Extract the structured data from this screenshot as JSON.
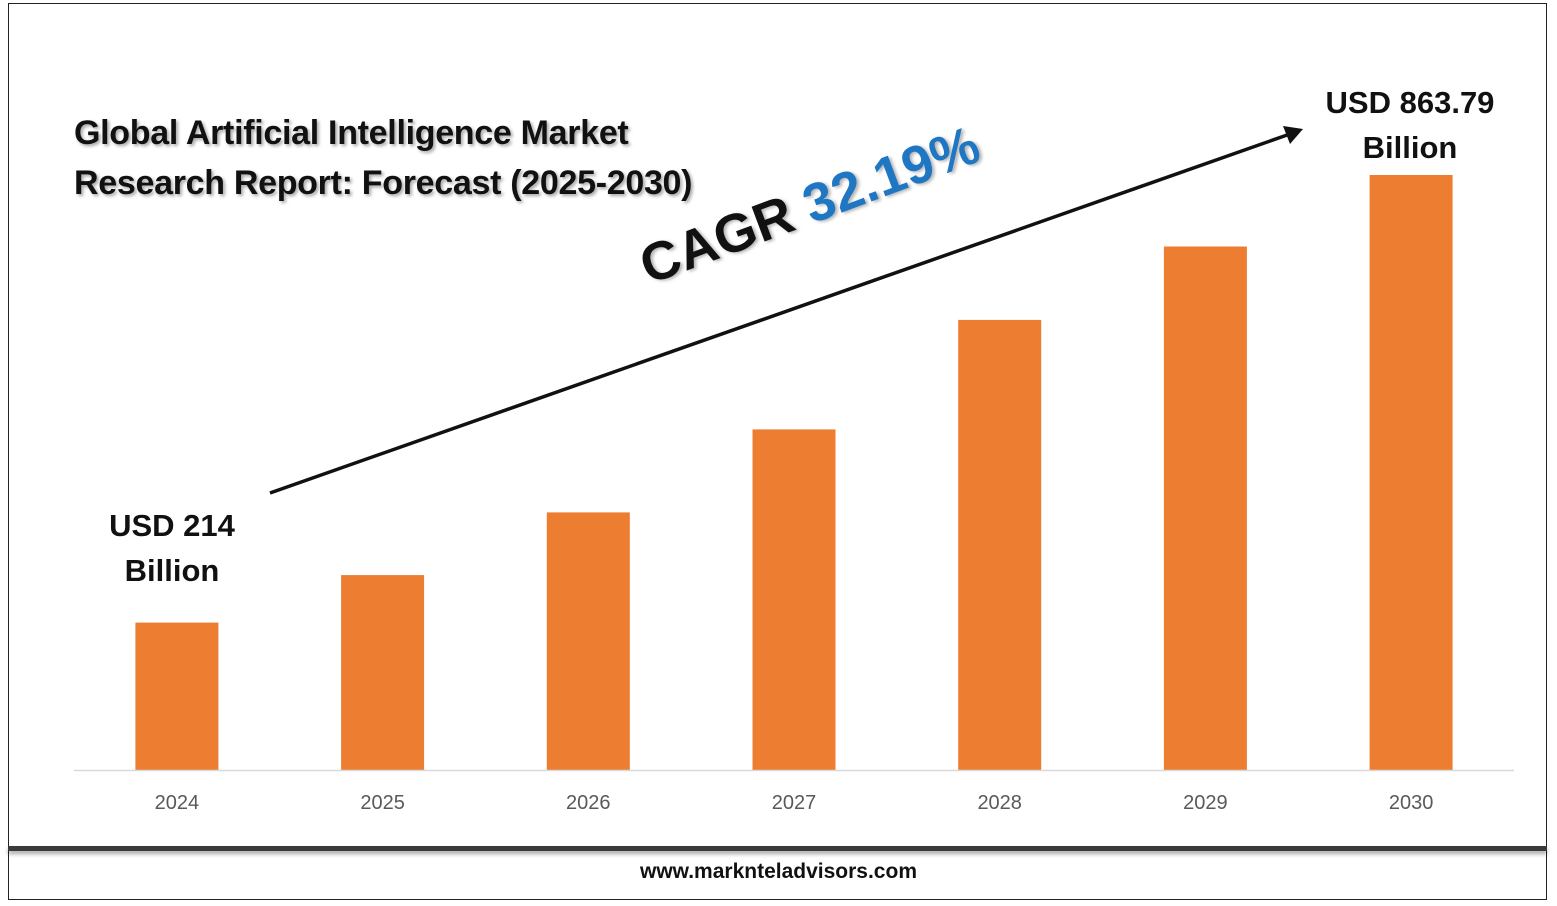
{
  "title": {
    "line1": "Global Artificial Intelligence Market",
    "line2": "Research Report: Forecast (2025-2030)"
  },
  "annotations": {
    "start_value": "USD 214",
    "start_unit": "Billion",
    "end_value": "USD 863.79",
    "end_unit": "Billion",
    "cagr_label": "CAGR",
    "cagr_value": "32.19%"
  },
  "footer": "www.marknteladvisors.com",
  "colors": {
    "bar": "#ED7D31",
    "cagr_value": "#1F77C4",
    "axis": "#D9D9D9",
    "tick_text": "#595959"
  },
  "chart_data": {
    "type": "bar",
    "title": "Global Artificial Intelligence Market Research Report: Forecast (2025-2030)",
    "categories": [
      "2024",
      "2025",
      "2026",
      "2027",
      "2028",
      "2029",
      "2030"
    ],
    "values": [
      214,
      282.9,
      374.0,
      494.4,
      653.5,
      760,
      863.79
    ],
    "ylim": [
      0,
      863.79
    ],
    "xlabel": "",
    "ylabel": "",
    "unit": "USD Billion",
    "grid": false,
    "legend": "none"
  }
}
